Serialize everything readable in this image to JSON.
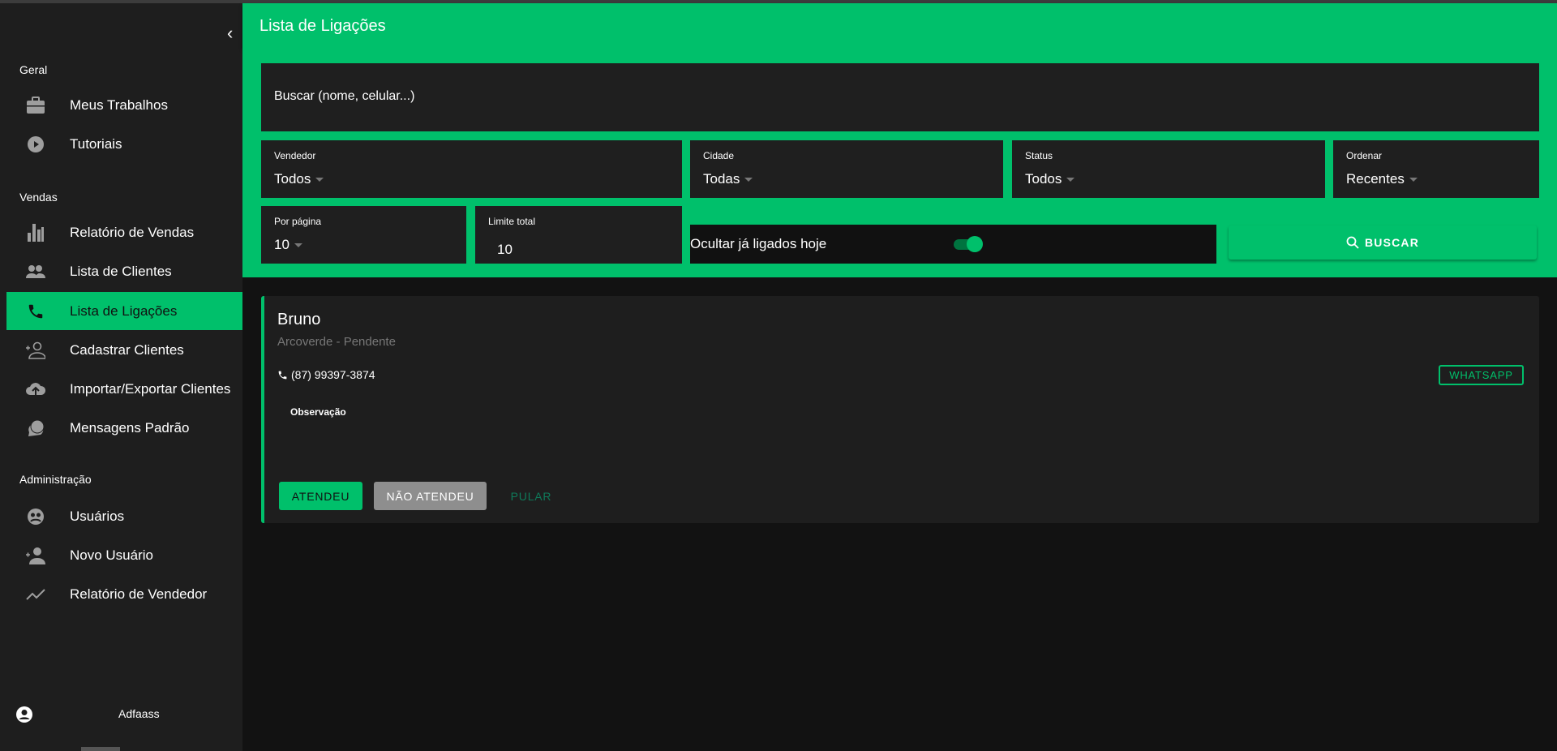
{
  "colors": {
    "accent": "#00c06b",
    "sidebar": "#1e1e1e",
    "background": "#121212",
    "field": "#1f1f1f"
  },
  "sidebar": {
    "sections": [
      {
        "label": "Geral",
        "items": [
          {
            "label": "Meus Trabalhos",
            "icon": "briefcase-icon"
          },
          {
            "label": "Tutoriais",
            "icon": "play-circle-icon"
          }
        ]
      },
      {
        "label": "Vendas",
        "items": [
          {
            "label": "Relatório de Vendas",
            "icon": "bar-chart-icon"
          },
          {
            "label": "Lista de Clientes",
            "icon": "people-icon"
          },
          {
            "label": "Lista de Ligações",
            "icon": "phone-icon",
            "active": true
          },
          {
            "label": "Cadastrar Clientes",
            "icon": "person-add-icon"
          },
          {
            "label": "Importar/Exportar Clientes",
            "icon": "cloud-upload-icon"
          },
          {
            "label": "Mensagens Padrão",
            "icon": "chat-icon"
          }
        ]
      },
      {
        "label": "Administração",
        "items": [
          {
            "label": "Usuários",
            "icon": "users-circle-icon"
          },
          {
            "label": "Novo Usuário",
            "icon": "person-add-filled-icon"
          },
          {
            "label": "Relatório de Vendedor",
            "icon": "trend-line-icon"
          }
        ]
      }
    ],
    "user": {
      "name": "Adfaass",
      "icon": "account-circle-icon"
    }
  },
  "header": {
    "title": "Lista de Ligações"
  },
  "filters": {
    "search_placeholder": "Buscar (nome, celular...)",
    "vendedor": {
      "label": "Vendedor",
      "value": "Todos"
    },
    "cidade": {
      "label": "Cidade",
      "value": "Todas"
    },
    "status": {
      "label": "Status",
      "value": "Todos"
    },
    "ordenar": {
      "label": "Ordenar",
      "value": "Recentes"
    },
    "por_pagina": {
      "label": "Por página",
      "value": "10"
    },
    "limite_total": {
      "label": "Limite total",
      "value": "10"
    },
    "ocultar": {
      "label": "Ocultar já ligados hoje",
      "checked": true
    },
    "buscar_label": "BUSCAR"
  },
  "card": {
    "name": "Bruno",
    "subtitle": "Arcoverde - Pendente",
    "phone": "(87) 99397-3874",
    "whatsapp_label": "WHATSAPP",
    "observacao_label": "Observação",
    "actions": {
      "atendeu": "ATENDEU",
      "nao_atendeu": "NÃO ATENDEU",
      "pular": "PULAR"
    }
  }
}
